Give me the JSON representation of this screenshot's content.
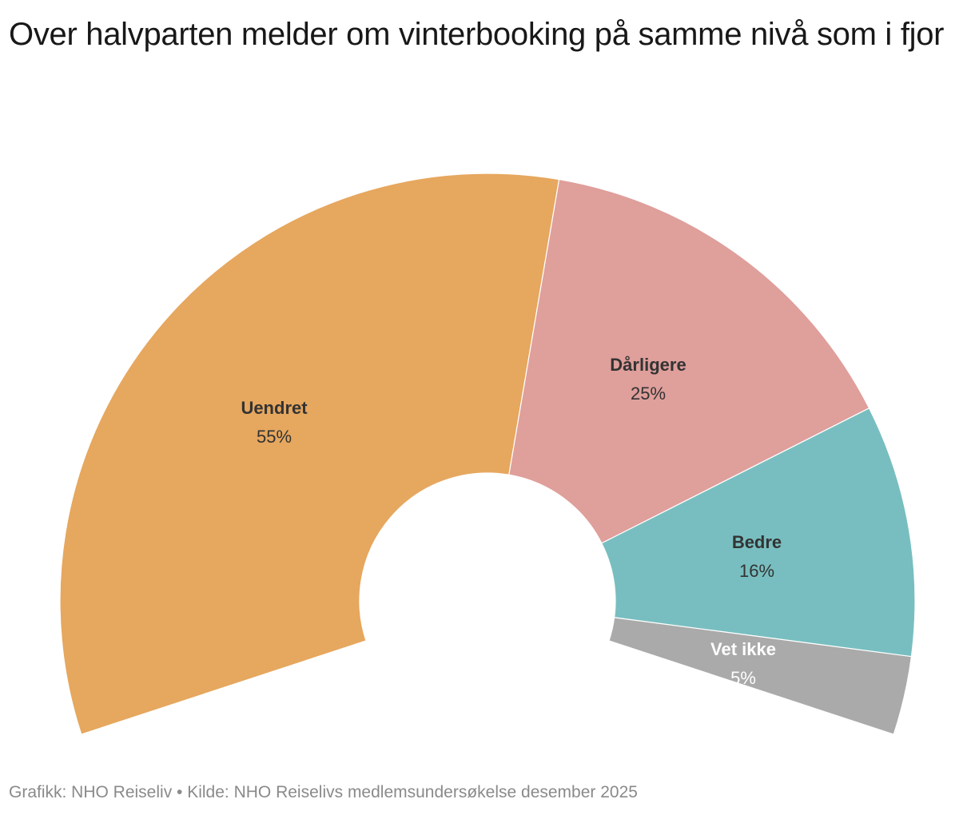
{
  "title": "Over halvparten melder om vinterbooking på samme nivå som i fjor",
  "footer": "Grafikk: NHO Reiseliv • Kilde: NHO Reiselivs medlemsundersøkelse desember 2025",
  "chart_data": {
    "type": "pie",
    "subtype": "semi-donut",
    "title": "Over halvparten melder om vinterbooking på samme nivå som i fjor",
    "categories": [
      "Uendret",
      "Dårligere",
      "Bedre",
      "Vet ikke"
    ],
    "values": [
      55,
      25,
      16,
      5
    ],
    "value_labels": [
      "55%",
      "25%",
      "16%",
      "5%"
    ],
    "colors": [
      "#E6A75E",
      "#DF9F9B",
      "#78BEC0",
      "#AAAAAA"
    ],
    "label_colors": [
      "#333333",
      "#333333",
      "#333333",
      "#ffffff"
    ],
    "legend": "none (labels inside slices)",
    "source": "Grafikk: NHO Reiseliv • Kilde: NHO Reiselivs medlemsundersøkelse desember 2025"
  }
}
